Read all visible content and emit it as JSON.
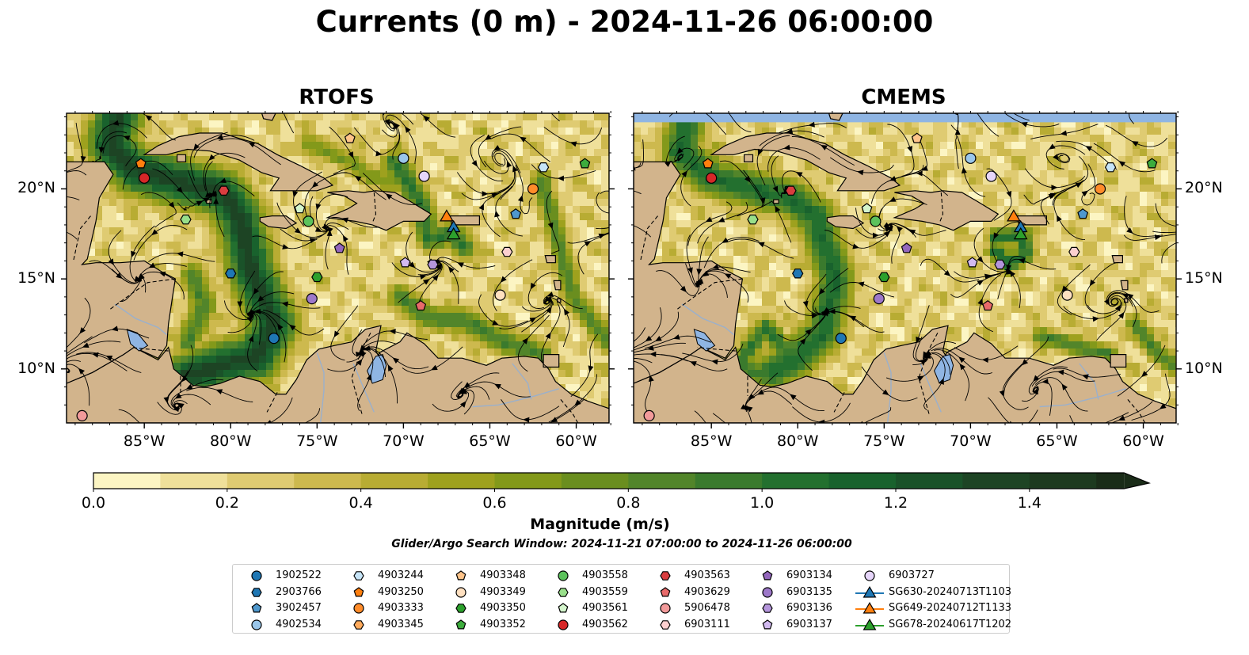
{
  "title": "Currents (0 m) - 2024-11-26 06:00:00",
  "panels": [
    {
      "title": "RTOFS"
    },
    {
      "title": "CMEMS"
    }
  ],
  "axes": {
    "x_ticks": [
      "85°W",
      "80°W",
      "75°W",
      "70°W",
      "65°W",
      "60°W"
    ],
    "y_ticks": [
      "20°N",
      "15°N",
      "10°N"
    ]
  },
  "colorbar": {
    "label": "Magnitude (m/s)",
    "ticks": [
      "0.0",
      "0.2",
      "0.4",
      "0.6",
      "0.8",
      "1.0",
      "1.2",
      "1.4"
    ],
    "colors": [
      "#fcf5c3",
      "#efe09a",
      "#dfcb72",
      "#cdb94e",
      "#b8ac33",
      "#9ea11e",
      "#83991a",
      "#6a8e1f",
      "#52852a",
      "#3a7a2d",
      "#23702f",
      "#19622d",
      "#1a5229",
      "#1d4424",
      "#1d3a1f",
      "#1a2c18"
    ]
  },
  "search_window": "Glider/Argo Search Window: 2024-11-21 07:00:00 to 2024-11-26 06:00:00",
  "legend": [
    {
      "label": "1902522",
      "marker": "circle",
      "color": "#1f77b4"
    },
    {
      "label": "2903766",
      "marker": "hexagon",
      "color": "#1f77b4"
    },
    {
      "label": "3902457",
      "marker": "pentagon",
      "color": "#4f98cd"
    },
    {
      "label": "4902534",
      "marker": "circle",
      "color": "#9ac6ea"
    },
    {
      "label": "4903244",
      "marker": "hexagon",
      "color": "#c6e4f7"
    },
    {
      "label": "4903250",
      "marker": "pentagon",
      "color": "#ff7f0e"
    },
    {
      "label": "4903333",
      "marker": "circle",
      "color": "#ff8c2a"
    },
    {
      "label": "4903345",
      "marker": "hexagon",
      "color": "#ffaa5c"
    },
    {
      "label": "4903348",
      "marker": "pentagon",
      "color": "#ffc48a"
    },
    {
      "label": "4903349",
      "marker": "circle",
      "color": "#ffe0c0"
    },
    {
      "label": "4903350",
      "marker": "hexagon",
      "color": "#2ca02c"
    },
    {
      "label": "4903352",
      "marker": "pentagon",
      "color": "#3dac3d"
    },
    {
      "label": "4903558",
      "marker": "circle",
      "color": "#5cc25c"
    },
    {
      "label": "4903559",
      "marker": "hexagon",
      "color": "#98df8a"
    },
    {
      "label": "4903561",
      "marker": "pentagon",
      "color": "#d4f5cc"
    },
    {
      "label": "4903562",
      "marker": "circle",
      "color": "#d62728"
    },
    {
      "label": "4903563",
      "marker": "hexagon",
      "color": "#d93d3f"
    },
    {
      "label": "4903629",
      "marker": "pentagon",
      "color": "#e86a6a"
    },
    {
      "label": "5906478",
      "marker": "circle",
      "color": "#f29a9a"
    },
    {
      "label": "6903111",
      "marker": "hexagon",
      "color": "#fcd0d0"
    },
    {
      "label": "6903134",
      "marker": "pentagon",
      "color": "#9467bd"
    },
    {
      "label": "6903135",
      "marker": "circle",
      "color": "#9d78c9"
    },
    {
      "label": "6903136",
      "marker": "hexagon",
      "color": "#b495db"
    },
    {
      "label": "6903137",
      "marker": "pentagon",
      "color": "#d2baf0"
    },
    {
      "label": "6903727",
      "marker": "circle",
      "color": "#e6d5fa"
    },
    {
      "label": "SG630-20240713T1103",
      "marker": "triangle",
      "color": "#1f77b4"
    },
    {
      "label": "SG649-20240712T1133",
      "marker": "triangle",
      "color": "#ff7f0e"
    },
    {
      "label": "SG678-20240617T1202",
      "marker": "triangle",
      "color": "#2ca02c"
    }
  ],
  "map": {
    "lon_range": [
      -89.5,
      -58.1
    ],
    "lat_range": [
      7.0,
      24.2
    ],
    "land_color": "#d2b48c",
    "lake_color": "#8fb5e3",
    "observations": [
      {
        "label": "1902522",
        "lon": -77.5,
        "lat": 11.7
      },
      {
        "label": "2903766",
        "lon": -80.0,
        "lat": 15.3
      },
      {
        "label": "3902457",
        "lon": -63.5,
        "lat": 18.6
      },
      {
        "label": "4902534",
        "lon": -70.0,
        "lat": 21.7
      },
      {
        "label": "4903244",
        "lon": -61.9,
        "lat": 21.2
      },
      {
        "label": "4903250",
        "lon": -85.2,
        "lat": 21.4
      },
      {
        "label": "4903333",
        "lon": -62.5,
        "lat": 20.0
      },
      {
        "label": "4903348",
        "lon": -73.1,
        "lat": 22.8
      },
      {
        "label": "4903349",
        "lon": -64.4,
        "lat": 14.1
      },
      {
        "label": "4903350",
        "lon": -75.0,
        "lat": 15.1
      },
      {
        "label": "4903352",
        "lon": -59.5,
        "lat": 21.4
      },
      {
        "label": "4903558",
        "lon": -75.5,
        "lat": 18.2
      },
      {
        "label": "4903559",
        "lon": -82.6,
        "lat": 18.3
      },
      {
        "label": "4903561",
        "lon": -76.0,
        "lat": 18.9
      },
      {
        "label": "4903562",
        "lon": -85.0,
        "lat": 20.6
      },
      {
        "label": "4903563",
        "lon": -80.4,
        "lat": 19.9
      },
      {
        "label": "4903629",
        "lon": -69.0,
        "lat": 13.5
      },
      {
        "label": "5906478",
        "lon": -88.6,
        "lat": 7.4
      },
      {
        "label": "6903111",
        "lon": -64.0,
        "lat": 16.5
      },
      {
        "label": "6903134",
        "lon": -73.7,
        "lat": 16.7
      },
      {
        "label": "6903135",
        "lon": -75.3,
        "lat": 13.9
      },
      {
        "label": "6903136",
        "lon": -68.3,
        "lat": 15.8
      },
      {
        "label": "6903137",
        "lon": -69.9,
        "lat": 15.9
      },
      {
        "label": "6903727",
        "lon": -68.8,
        "lat": 20.7
      },
      {
        "label": "SG630-20240713T1103",
        "lon": -67.1,
        "lat": 17.9
      },
      {
        "label": "SG649-20240712T1133",
        "lon": -67.5,
        "lat": 18.5
      },
      {
        "label": "SG678-20240617T1202",
        "lon": -67.1,
        "lat": 17.5
      }
    ]
  }
}
